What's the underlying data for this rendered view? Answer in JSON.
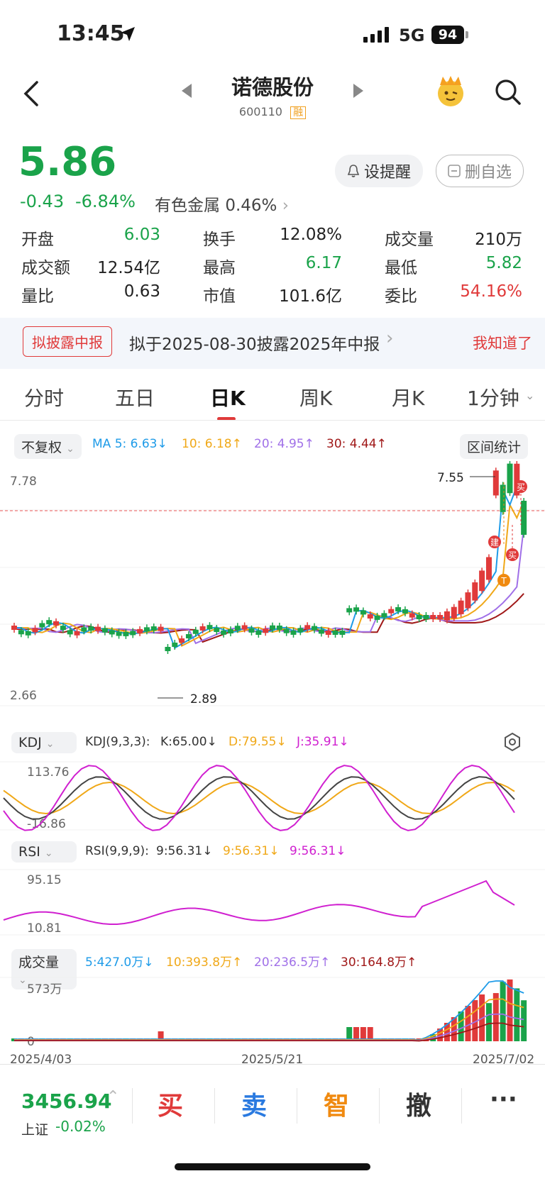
{
  "status_bar": {
    "time": "13:45",
    "network": "5G",
    "battery": "94"
  },
  "nav": {
    "stock_name": "诺德股份",
    "stock_code": "600110",
    "margin_badge": "融"
  },
  "quote": {
    "price": "5.86",
    "change": "-0.43",
    "change_pct": "-6.84%",
    "sector_name": "有色金属",
    "sector_pct": "0.46%",
    "remind_button": "设提醒",
    "remove_watch_button": "删自选"
  },
  "stats": [
    {
      "label": "开盘",
      "value": "6.03",
      "color": "green"
    },
    {
      "label": "换手",
      "value": "12.08%",
      "color": "dark"
    },
    {
      "label": "成交量",
      "value": "210万",
      "color": "dark"
    },
    {
      "label": "成交额",
      "value": "12.54亿",
      "color": "dark"
    },
    {
      "label": "最高",
      "value": "6.17",
      "color": "green"
    },
    {
      "label": "最低",
      "value": "5.82",
      "color": "green"
    },
    {
      "label": "量比",
      "value": "0.63",
      "color": "dark"
    },
    {
      "label": "市值",
      "value": "101.6亿",
      "color": "dark"
    },
    {
      "label": "委比",
      "value": "54.16%",
      "color": "red"
    }
  ],
  "notice": {
    "badge": "拟披露中报",
    "text": "拟于2025-08-30披露2025年中报",
    "dismiss": "我知道了"
  },
  "tabs": [
    "分时",
    "五日",
    "日K",
    "周K",
    "月K",
    "1分钟"
  ],
  "active_tab": "日K",
  "ma_bar": {
    "adjust": "不复权",
    "ma5": "MA 5: 6.63↓",
    "ma10": "10: 6.18↑",
    "ma20": "20: 4.95↑",
    "ma30": "30: 4.44↑",
    "range_stats": "区间统计"
  },
  "price_chart": {
    "max_label": "7.78",
    "min_label": "2.66",
    "high_marker": "7.55",
    "low_marker": "2.89",
    "buy_marker": "买",
    "build_marker": "建",
    "t_marker": "T"
  },
  "kdj": {
    "selector": "KDJ",
    "param": "KDJ(9,3,3):",
    "k": "K:65.00↓",
    "d": "D:79.55↓",
    "j": "J:35.91↓",
    "max": "113.76",
    "min": "-16.86"
  },
  "rsi": {
    "selector": "RSI",
    "param": "RSI(9,9,9):",
    "r1": "9:56.31↓",
    "r2": "9:56.31↓",
    "r3": "9:56.31↓",
    "max": "95.15",
    "min": "10.81"
  },
  "volume": {
    "selector": "成交量",
    "v5": "5:427.0万↓",
    "v10": "10:393.8万↑",
    "v20": "20:236.5万↑",
    "v30": "30:164.8万↑",
    "max": "573万",
    "min": "0"
  },
  "dates": [
    "2025/4/03",
    "2025/5/21",
    "2025/7/02"
  ],
  "bottom": {
    "index_value": "3456.94",
    "index_name": "上证",
    "index_pct": "-0.02%",
    "buy": "买",
    "sell": "卖",
    "smart": "智",
    "cancel": "撤",
    "more": "···"
  },
  "colors": {
    "up": "#e03a3a",
    "down": "#1aa34a",
    "ma5": "#1e9be8",
    "ma10": "#f0a818",
    "ma20": "#a070e8",
    "ma30": "#a01818",
    "j_line": "#d020d0"
  }
}
